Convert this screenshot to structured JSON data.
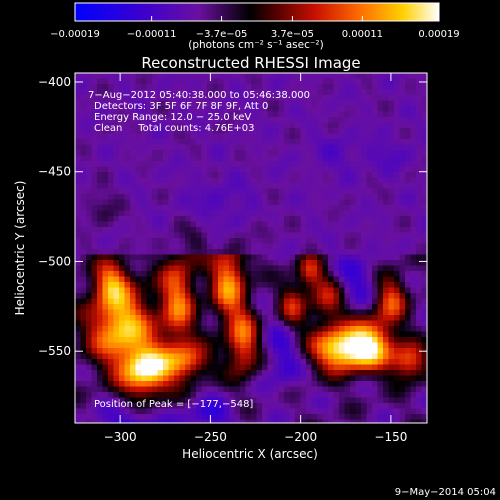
{
  "chart_data": {
    "type": "heatmap",
    "title": "Reconstructed RHESSI Image",
    "xlabel": "Heliocentric X (arcsec)",
    "ylabel": "Heliocentric Y (arcsec)",
    "xlim": [
      -325,
      -130
    ],
    "ylim": [
      -590,
      -395
    ],
    "x_ticks": [
      -300,
      -250,
      -200,
      -150
    ],
    "y_ticks": [
      -400,
      -450,
      -500,
      -550
    ],
    "x_tick_labels": [
      "−300",
      "−250",
      "−200",
      "−150"
    ],
    "y_tick_labels": [
      "−400",
      "−450",
      "−500",
      "−550"
    ],
    "colorbar": {
      "range": [
        -0.00019,
        0.00019
      ],
      "ticks": [
        -0.00019,
        -0.00011,
        -3.7e-05,
        3.7e-05,
        0.00011,
        0.00019
      ],
      "tick_labels": [
        "−0.00019",
        "−0.00011",
        "−3.7e−05",
        "3.7e−05",
        "0.00011",
        "0.00019"
      ],
      "unit_label": "(photons cm⁻² s⁻¹ asec⁻²)"
    },
    "info_lines": [
      "7−Aug−2012 05:40:38.000 to 05:46:38.000",
      "Detectors: 3F 5F 6F 7F 8F 9F, Att 0",
      "Energy Range: 12.0 − 25.0 keV",
      "Clean     Total counts: 4.76E+03"
    ],
    "peak_label": "Position of Peak = [−177,−548]",
    "peak": {
      "x": -177,
      "y": -548
    },
    "timestamp": "9−May−2014 05:04",
    "colormap": "blue-purple-red-orange-yellow-white"
  }
}
